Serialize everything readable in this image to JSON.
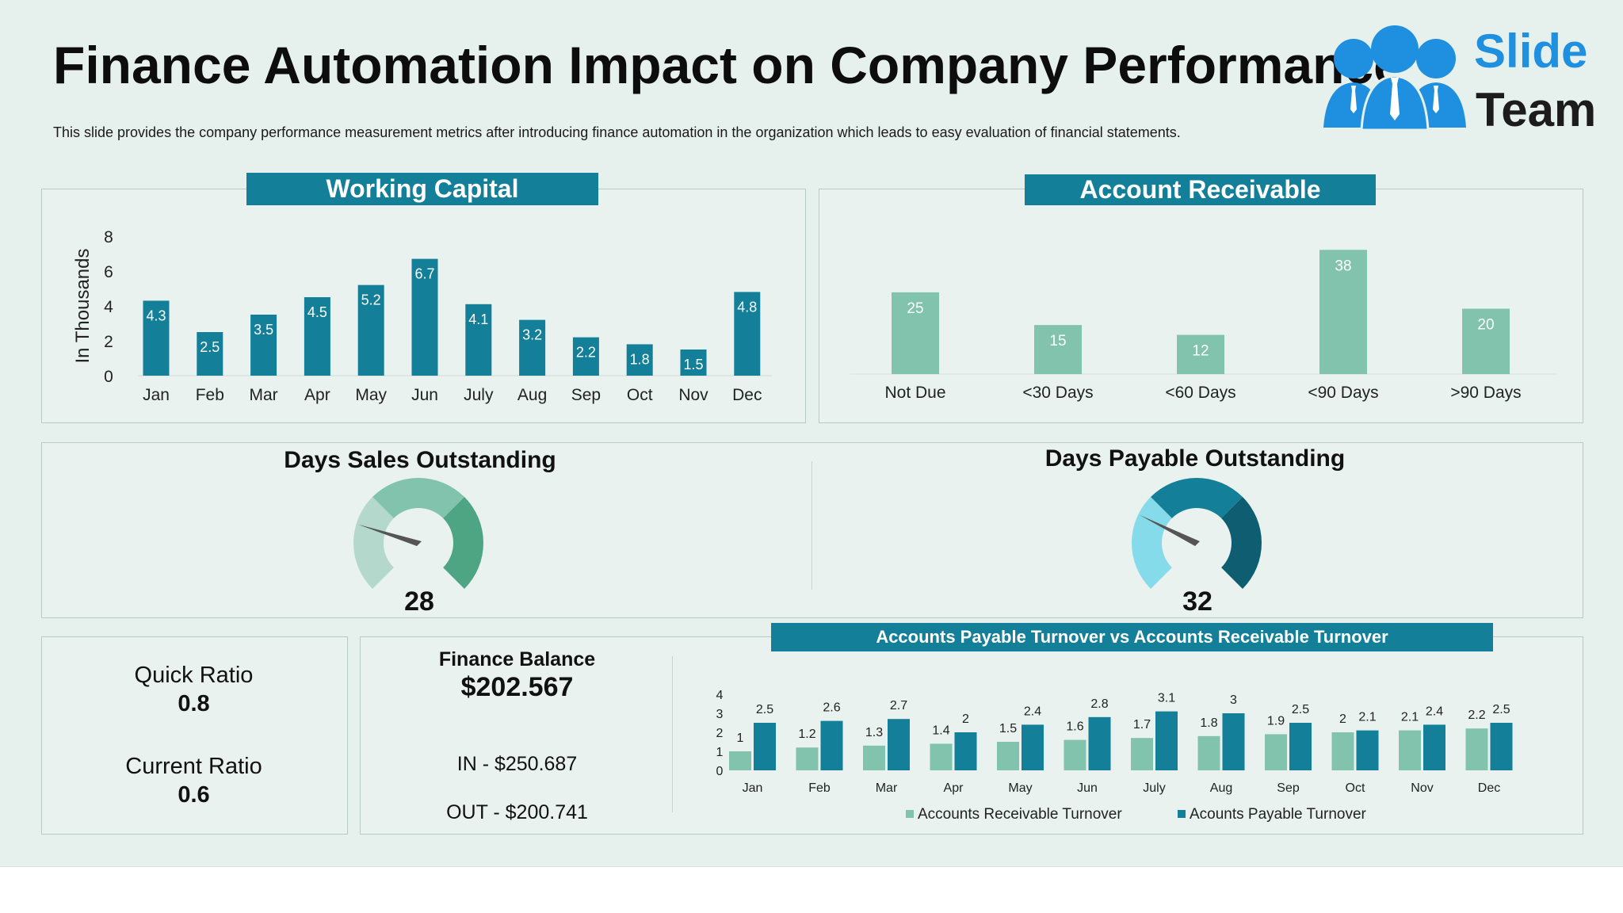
{
  "header": {
    "title": "Finance Automation Impact on Company Performance",
    "subtitle": "This slide provides the company performance measurement metrics after introducing finance automation in the organization which leads to easy evaluation of financial statements."
  },
  "logo": {
    "line1": "Slide",
    "line2": "Team"
  },
  "colors": {
    "teal": "#147f99",
    "mint": "#82c3ad",
    "dso_light": "#b4d9cc",
    "dso_mid": "#82c3ad",
    "dso_dark": "#4ea584",
    "dpo_light": "#86dbea",
    "dpo_mid": "#147f99",
    "dpo_dark": "#0f5d70",
    "background": "#e6f0ec"
  },
  "working_capital": {
    "banner": "Working Capital"
  },
  "account_receivable": {
    "banner": "Account Receivable"
  },
  "dso": {
    "title": "Days Sales Outstanding",
    "value": "28"
  },
  "dpo": {
    "title": "Days Payable Outstanding",
    "value": "32"
  },
  "ratios": {
    "quick_label": "Quick Ratio",
    "quick_value": "0.8",
    "current_label": "Current Ratio",
    "current_value": "0.6"
  },
  "finance_balance": {
    "title": "Finance Balance",
    "amount": "$202.567",
    "in": "IN - $250.687",
    "out": "OUT - $200.741"
  },
  "turnover": {
    "banner": "Accounts Payable Turnover vs Accounts Receivable Turnover"
  },
  "chart_data": [
    {
      "type": "bar",
      "title": "Working Capital",
      "ylabel": "In Thousands",
      "xlabel": "",
      "categories": [
        "Jan",
        "Feb",
        "Mar",
        "Apr",
        "May",
        "Jun",
        "July",
        "Aug",
        "Sep",
        "Oct",
        "Nov",
        "Dec"
      ],
      "values": [
        4.3,
        2.5,
        3.5,
        4.5,
        5.2,
        6.7,
        4.1,
        3.2,
        2.2,
        1.8,
        1.5,
        4.8
      ],
      "ylim": [
        0,
        8
      ],
      "yticks": [
        "0",
        "2",
        "4",
        "6",
        "8"
      ],
      "grid": false
    },
    {
      "type": "bar",
      "title": "Account Receivable",
      "categories": [
        "Not Due",
        "<30 Days",
        "<60 Days",
        "<90 Days",
        ">90 Days"
      ],
      "values": [
        25,
        15,
        12,
        38,
        20
      ],
      "ylim": [
        0,
        40
      ],
      "grid": false
    },
    {
      "type": "bar",
      "title": "Accounts Payable Turnover vs Accounts Receivable Turnover",
      "categories": [
        "Jan",
        "Feb",
        "Mar",
        "Apr",
        "May",
        "Jun",
        "July",
        "Aug",
        "Sep",
        "Oct",
        "Nov",
        "Dec"
      ],
      "series": [
        {
          "name": "Accounts Receivable Turnover",
          "values": [
            1,
            1.2,
            1.3,
            1.4,
            1.5,
            1.6,
            1.7,
            1.8,
            1.9,
            2,
            2.1,
            2.2
          ]
        },
        {
          "name": "Acounts Payable Turnover",
          "values": [
            2.5,
            2.6,
            2.7,
            2,
            2.4,
            2.8,
            3.1,
            3,
            2.5,
            2.1,
            2.4,
            2.5
          ]
        }
      ],
      "ylim": [
        0,
        4
      ],
      "yticks": [
        "0",
        "1",
        "2",
        "3",
        "4"
      ],
      "legend": "bottom",
      "grid": false
    }
  ]
}
